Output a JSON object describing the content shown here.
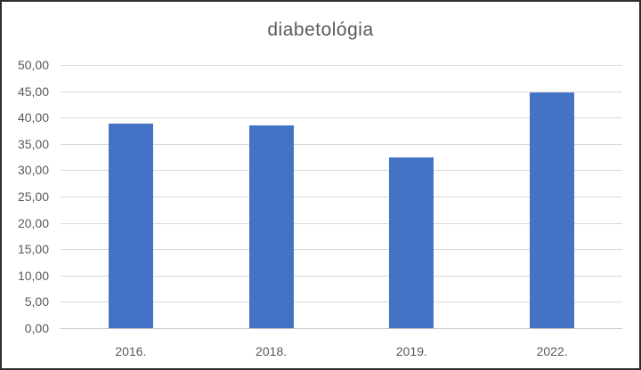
{
  "window": {
    "background": "#ffffff",
    "border_color": "#2f2f2f"
  },
  "chart_data": {
    "type": "bar",
    "title": "diabetológia",
    "categories": [
      "2016.",
      "2018.",
      "2019.",
      "2022."
    ],
    "values": [
      38.8,
      38.5,
      32.5,
      44.8
    ],
    "xlabel": "",
    "ylabel": "",
    "ylim": [
      0,
      50
    ],
    "ytick_step": 5,
    "ytick_labels": [
      "0,00",
      "5,00",
      "10,00",
      "15,00",
      "20,00",
      "25,00",
      "30,00",
      "35,00",
      "40,00",
      "45,00",
      "50,00"
    ],
    "grid": true,
    "legend_position": "none",
    "decimal_separator": ",",
    "colors": {
      "bar": "#4472C4",
      "gridline": "#D9D9D9",
      "axis_line": "#C6C6C6",
      "tick_label": "#595959",
      "title": "#595959"
    }
  }
}
